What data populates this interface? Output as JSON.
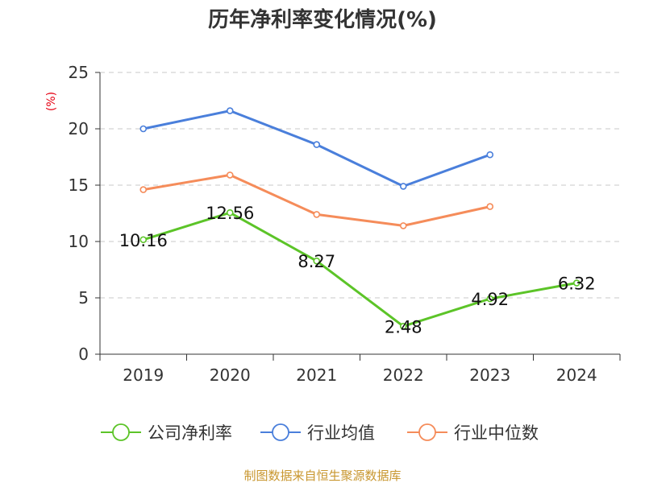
{
  "chart_data": {
    "type": "line",
    "title": "历年净利率变化情况(%)",
    "ylabel": "(%)",
    "categories": [
      "2019",
      "2020",
      "2021",
      "2022",
      "2023",
      "2024"
    ],
    "ylim": [
      0,
      25
    ],
    "yticks": [
      0,
      5,
      10,
      15,
      20,
      25
    ],
    "grid": true,
    "legend_position": "bottom",
    "series": [
      {
        "name": "公司净利率",
        "color": "#5cc428",
        "values": [
          10.16,
          12.56,
          8.27,
          2.48,
          4.92,
          6.32
        ],
        "labels": [
          "10.16",
          "12.56",
          "8.27",
          "2.48",
          "4.92",
          "6.32"
        ]
      },
      {
        "name": "行业均值",
        "color": "#4a7fdb",
        "values": [
          20.0,
          21.6,
          18.6,
          14.9,
          17.7,
          null
        ]
      },
      {
        "name": "行业中位数",
        "color": "#f58c5a",
        "values": [
          14.6,
          15.9,
          12.4,
          11.4,
          13.1,
          null
        ]
      }
    ]
  },
  "source": "制图数据来自恒生聚源数据库"
}
